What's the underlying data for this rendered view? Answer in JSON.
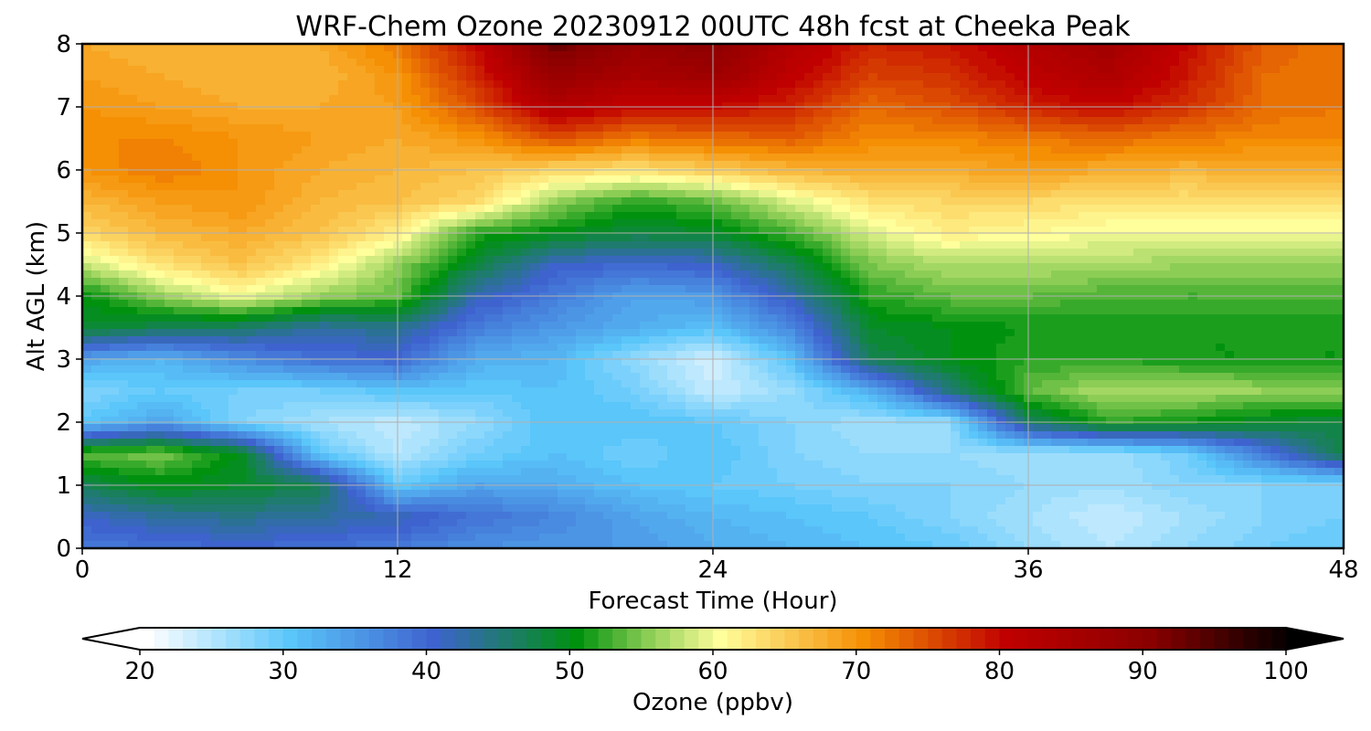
{
  "chart_data": {
    "type": "heatmap",
    "title": "WRF-Chem Ozone  20230912 00UTC 48h fcst at Cheeka Peak",
    "xlabel": "Forecast Time (Hour)",
    "ylabel": "Alt AGL (km)",
    "xlim": [
      0,
      48
    ],
    "ylim": [
      0,
      8
    ],
    "xticks": [
      "0",
      "12",
      "24",
      "36",
      "48"
    ],
    "yticks": [
      "0",
      "1",
      "2",
      "3",
      "4",
      "5",
      "6",
      "7",
      "8"
    ],
    "grid": true,
    "colorbar": {
      "label": "Ozone  (ppbv)",
      "min": 20,
      "max": 100,
      "step": 1,
      "ticks": [
        "20",
        "30",
        "40",
        "50",
        "60",
        "70",
        "80",
        "90",
        "100"
      ],
      "extend": "both",
      "stops": [
        {
          "v": 20,
          "c": "#ffffff"
        },
        {
          "v": 30,
          "c": "#5ac6fa"
        },
        {
          "v": 40,
          "c": "#3e63cf"
        },
        {
          "v": 50,
          "c": "#00920f"
        },
        {
          "v": 55,
          "c": "#8ccd55"
        },
        {
          "v": 60,
          "c": "#ffff9c"
        },
        {
          "v": 70,
          "c": "#f58f04"
        },
        {
          "v": 80,
          "c": "#c00000"
        },
        {
          "v": 90,
          "c": "#8a0000"
        },
        {
          "v": 100,
          "c": "#000000"
        }
      ]
    },
    "x_hours": [
      0,
      3,
      6,
      9,
      12,
      15,
      18,
      21,
      24,
      27,
      30,
      33,
      36,
      39,
      42,
      45,
      48
    ],
    "y_km": [
      0,
      0.5,
      1,
      1.5,
      2,
      2.5,
      3,
      3.5,
      4,
      4.5,
      5,
      5.5,
      6,
      6.5,
      7,
      7.5,
      8
    ],
    "ozone_ppbv": [
      [
        38,
        39,
        40,
        39,
        38,
        36,
        35,
        35,
        33,
        32,
        31,
        30,
        27,
        25,
        27,
        29,
        30
      ],
      [
        41,
        43,
        44,
        43,
        42,
        39,
        37,
        34,
        32,
        31,
        30,
        28,
        26,
        24,
        26,
        28,
        29
      ],
      [
        47,
        50,
        49,
        47,
        30,
        34,
        33,
        31,
        30,
        29,
        28,
        28,
        27,
        26,
        28,
        28,
        28
      ],
      [
        54,
        55,
        50,
        30,
        25,
        29,
        31,
        29,
        31,
        28,
        27,
        27,
        26,
        26,
        29,
        38,
        48
      ],
      [
        30,
        34,
        28,
        26,
        24,
        27,
        31,
        31,
        30,
        28,
        26,
        27,
        46,
        52,
        51,
        49,
        48
      ],
      [
        28,
        30,
        29,
        29,
        31,
        30,
        31,
        29,
        24,
        27,
        33,
        45,
        54,
        57,
        57,
        56,
        56
      ],
      [
        34,
        32,
        36,
        39,
        40,
        33,
        32,
        27,
        23,
        31,
        47,
        50,
        52,
        52,
        51,
        51,
        51
      ],
      [
        49,
        47,
        46,
        43,
        44,
        38,
        35,
        33,
        31,
        37,
        49,
        50,
        51,
        51,
        51,
        51,
        51
      ],
      [
        50,
        56,
        60,
        56,
        54,
        42,
        38,
        34,
        35,
        42,
        52,
        54,
        54,
        53,
        53,
        53,
        53
      ],
      [
        58,
        63,
        66,
        62,
        56,
        48,
        41,
        40,
        41,
        47,
        55,
        57,
        57,
        57,
        56,
        56,
        56
      ],
      [
        64,
        67,
        68,
        66,
        62,
        52,
        50,
        48,
        49,
        53,
        59,
        62,
        61,
        60,
        60,
        60,
        60
      ],
      [
        67,
        69,
        70,
        67,
        66,
        64,
        56,
        52,
        54,
        59,
        63,
        64,
        64,
        63,
        63,
        63,
        63
      ],
      [
        70,
        72,
        70,
        68,
        67,
        66,
        64,
        63,
        65,
        67,
        68,
        68,
        69,
        68,
        67,
        68,
        68
      ],
      [
        71,
        71,
        70,
        69,
        68,
        70,
        75,
        72,
        73,
        74,
        71,
        71,
        72,
        73,
        72,
        71,
        71
      ],
      [
        70,
        69,
        68,
        68,
        69,
        75,
        83,
        80,
        80,
        78,
        73,
        75,
        78,
        80,
        77,
        73,
        72
      ],
      [
        69,
        68,
        67,
        67,
        70,
        78,
        88,
        85,
        87,
        81,
        76,
        77,
        81,
        84,
        79,
        73,
        72
      ],
      [
        68,
        67,
        67,
        68,
        72,
        80,
        93,
        88,
        90,
        83,
        78,
        79,
        83,
        86,
        80,
        74,
        72
      ]
    ]
  }
}
